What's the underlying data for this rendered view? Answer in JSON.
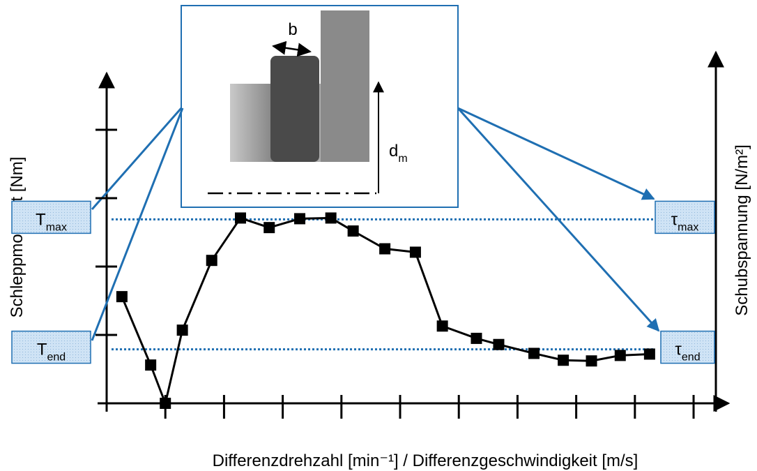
{
  "chart_data": {
    "type": "line",
    "x_label": "Differenzdrehzahl [min⁻¹] / Differenzgeschwindigkeit [m/s]",
    "y_label": "Schleppmoment [Nm]",
    "y2_label": "Schubspannung [N/m²]",
    "x": [
      0.26,
      0.75,
      1.0,
      1.29,
      1.79,
      2.28,
      2.77,
      3.29,
      3.82,
      4.2,
      4.74,
      5.26,
      5.72,
      6.3,
      6.68,
      7.28,
      7.78,
      8.26,
      8.75,
      9.25
    ],
    "series": [
      {
        "color": "#000000",
        "values": [
          1.56,
          0.56,
          0,
          1.07,
          2.09,
          2.71,
          2.57,
          2.7,
          2.71,
          2.52,
          2.26,
          2.21,
          1.13,
          0.95,
          0.86,
          0.73,
          0.63,
          0.62,
          0.7,
          0.72
        ]
      }
    ],
    "xlim": [
      0,
      10.54
    ],
    "ylim": [
      0,
      4.83
    ],
    "xticks": [
      1,
      2,
      3,
      4,
      5,
      6,
      7,
      8,
      9,
      10
    ],
    "yticks": [
      1,
      2,
      3,
      4
    ],
    "reference_lines": [
      {
        "value": 2.69,
        "left": {
          "main": "T",
          "sub": "max"
        },
        "right": {
          "main": "τ",
          "sub": "max"
        },
        "color": "#1f6fb2"
      },
      {
        "value": 0.79,
        "left": {
          "main": "T",
          "sub": "end"
        },
        "right": {
          "main": "τ",
          "sub": "end"
        },
        "color": "#1f6fb2"
      }
    ],
    "inset": {
      "width_label": "b",
      "diameter_label": {
        "main": "d",
        "sub": "m"
      }
    }
  }
}
